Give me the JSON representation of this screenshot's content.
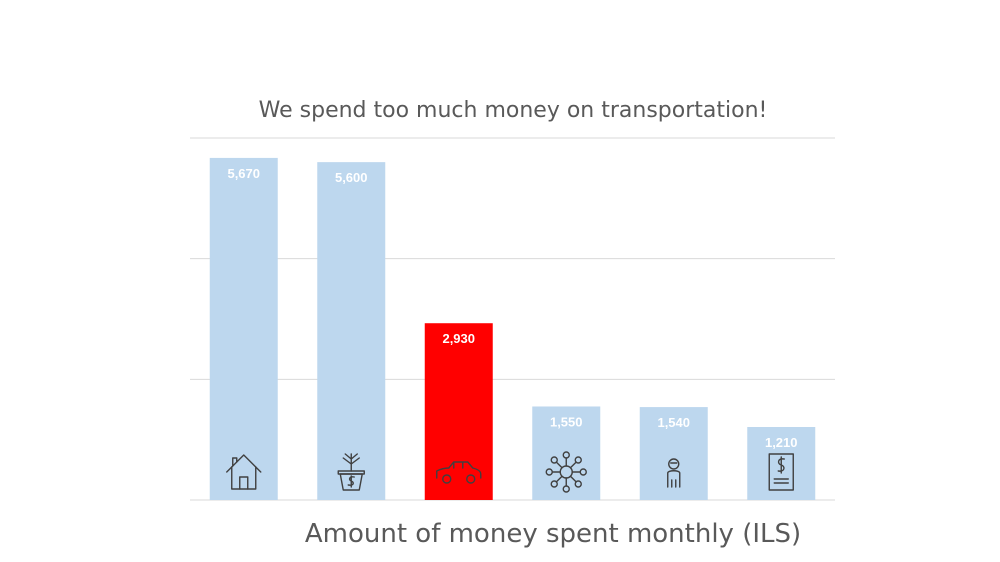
{
  "chart_data": {
    "type": "bar",
    "title": "We spend too much money on transportation!",
    "xlabel": "Amount of money spent monthly (ILS)",
    "ylabel": "",
    "ylim": [
      0,
      6000
    ],
    "grid": true,
    "categories": [
      "",
      "",
      "",
      "",
      "",
      ""
    ],
    "values": [
      5670,
      5600,
      2930,
      1550,
      1540,
      1210
    ],
    "value_labels": [
      "5,670",
      "5,600",
      "2,930",
      "1,550",
      "1,540",
      "1,210"
    ],
    "icons": [
      "house-icon",
      "money-plant-icon",
      "car-icon",
      "network-icon",
      "person-icon",
      "bill-icon"
    ],
    "colors": {
      "default": "#bdd7ee",
      "highlight": "#ff0000"
    },
    "highlight_index": 2
  }
}
